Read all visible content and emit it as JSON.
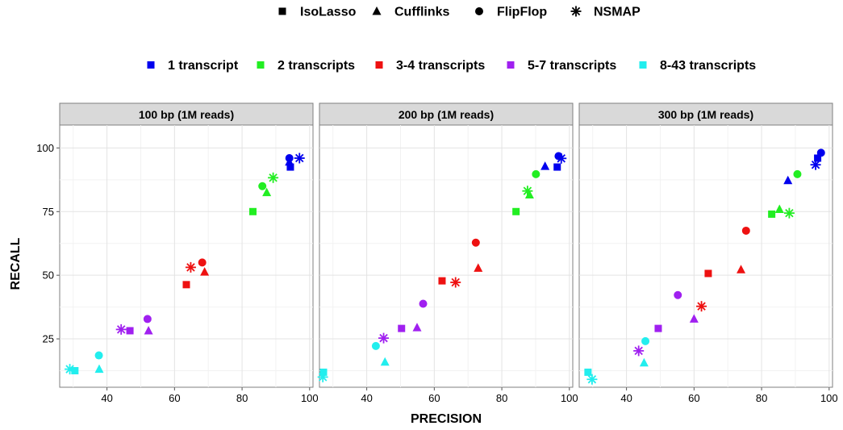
{
  "shape_legend": [
    {
      "label": "IsoLasso",
      "shape": "square"
    },
    {
      "label": "Cufflinks",
      "shape": "triangle"
    },
    {
      "label": "FlipFlop",
      "shape": "circle"
    },
    {
      "label": "NSMAP",
      "shape": "asterisk"
    }
  ],
  "color_legend": [
    {
      "label": "1 transcript",
      "color": "#0000ee"
    },
    {
      "label": "2 transcripts",
      "color": "#22ee22"
    },
    {
      "label": "3-4 transcripts",
      "color": "#ee1111"
    },
    {
      "label": "5-7 transcripts",
      "color": "#a020f0"
    },
    {
      "label": "8-43 transcripts",
      "color": "#22eeee"
    }
  ],
  "chart_data": {
    "type": "scatter",
    "xlabel": "PRECISION",
    "ylabel": "RECALL",
    "xlim": [
      26,
      101
    ],
    "ylim": [
      6,
      109
    ],
    "xticks": [
      40,
      60,
      80,
      100
    ],
    "yticks": [
      25,
      50,
      75,
      100
    ],
    "grid": true,
    "legend_position": "top",
    "panels": [
      {
        "title": "100 bp (1M reads)",
        "points": [
          {
            "method": "IsoLasso",
            "group": "1 transcript",
            "x": 94.3,
            "y": 92.5
          },
          {
            "method": "Cufflinks",
            "group": "1 transcript",
            "x": 94.0,
            "y": 94.5
          },
          {
            "method": "FlipFlop",
            "group": "1 transcript",
            "x": 94.0,
            "y": 96.0
          },
          {
            "method": "NSMAP",
            "group": "1 transcript",
            "x": 97.0,
            "y": 96.0
          },
          {
            "method": "IsoLasso",
            "group": "2 transcripts",
            "x": 83.2,
            "y": 75.0
          },
          {
            "method": "Cufflinks",
            "group": "2 transcripts",
            "x": 87.3,
            "y": 82.5
          },
          {
            "method": "FlipFlop",
            "group": "2 transcripts",
            "x": 86.0,
            "y": 85.0
          },
          {
            "method": "NSMAP",
            "group": "2 transcripts",
            "x": 89.2,
            "y": 88.3
          },
          {
            "method": "IsoLasso",
            "group": "3-4 transcripts",
            "x": 63.5,
            "y": 46.3
          },
          {
            "method": "Cufflinks",
            "group": "3-4 transcripts",
            "x": 68.9,
            "y": 51.3
          },
          {
            "method": "FlipFlop",
            "group": "3-4 transcripts",
            "x": 68.2,
            "y": 55.0
          },
          {
            "method": "NSMAP",
            "group": "3-4 transcripts",
            "x": 64.8,
            "y": 53.1
          },
          {
            "method": "IsoLasso",
            "group": "5-7 transcripts",
            "x": 46.8,
            "y": 28.2
          },
          {
            "method": "Cufflinks",
            "group": "5-7 transcripts",
            "x": 52.3,
            "y": 28.2
          },
          {
            "method": "FlipFlop",
            "group": "5-7 transcripts",
            "x": 52.0,
            "y": 32.8
          },
          {
            "method": "NSMAP",
            "group": "5-7 transcripts",
            "x": 44.2,
            "y": 28.7
          },
          {
            "method": "IsoLasso",
            "group": "8-43 transcripts",
            "x": 30.5,
            "y": 12.5
          },
          {
            "method": "Cufflinks",
            "group": "8-43 transcripts",
            "x": 37.7,
            "y": 13.1
          },
          {
            "method": "FlipFlop",
            "group": "8-43 transcripts",
            "x": 37.6,
            "y": 18.5
          },
          {
            "method": "NSMAP",
            "group": "8-43 transcripts",
            "x": 29.0,
            "y": 13.1
          }
        ]
      },
      {
        "title": "200 bp (1M reads)",
        "points": [
          {
            "method": "IsoLasso",
            "group": "1 transcript",
            "x": 96.4,
            "y": 92.5
          },
          {
            "method": "Cufflinks",
            "group": "1 transcript",
            "x": 92.8,
            "y": 92.8
          },
          {
            "method": "FlipFlop",
            "group": "1 transcript",
            "x": 96.8,
            "y": 96.8
          },
          {
            "method": "NSMAP",
            "group": "1 transcript",
            "x": 97.6,
            "y": 95.9
          },
          {
            "method": "IsoLasso",
            "group": "2 transcripts",
            "x": 84.2,
            "y": 75.0
          },
          {
            "method": "Cufflinks",
            "group": "2 transcripts",
            "x": 88.2,
            "y": 81.6
          },
          {
            "method": "FlipFlop",
            "group": "2 transcripts",
            "x": 90.1,
            "y": 89.7
          },
          {
            "method": "NSMAP",
            "group": "2 transcripts",
            "x": 87.6,
            "y": 83.1
          },
          {
            "method": "IsoLasso",
            "group": "3-4 transcripts",
            "x": 62.3,
            "y": 47.8
          },
          {
            "method": "Cufflinks",
            "group": "3-4 transcripts",
            "x": 73.0,
            "y": 52.8
          },
          {
            "method": "FlipFlop",
            "group": "3-4 transcripts",
            "x": 72.3,
            "y": 62.8
          },
          {
            "method": "NSMAP",
            "group": "3-4 transcripts",
            "x": 66.3,
            "y": 47.2
          },
          {
            "method": "IsoLasso",
            "group": "5-7 transcripts",
            "x": 50.3,
            "y": 29.1
          },
          {
            "method": "Cufflinks",
            "group": "5-7 transcripts",
            "x": 54.9,
            "y": 29.4
          },
          {
            "method": "FlipFlop",
            "group": "5-7 transcripts",
            "x": 56.7,
            "y": 38.8
          },
          {
            "method": "NSMAP",
            "group": "5-7 transcripts",
            "x": 45.0,
            "y": 25.3
          },
          {
            "method": "IsoLasso",
            "group": "8-43 transcripts",
            "x": 27.2,
            "y": 11.9
          },
          {
            "method": "Cufflinks",
            "group": "8-43 transcripts",
            "x": 45.4,
            "y": 15.9
          },
          {
            "method": "FlipFlop",
            "group": "8-43 transcripts",
            "x": 42.7,
            "y": 22.2
          },
          {
            "method": "NSMAP",
            "group": "8-43 transcripts",
            "x": 27.0,
            "y": 10.0
          }
        ]
      },
      {
        "title": "300 bp (1M reads)",
        "points": [
          {
            "method": "IsoLasso",
            "group": "1 transcript",
            "x": 96.6,
            "y": 96.0
          },
          {
            "method": "Cufflinks",
            "group": "1 transcript",
            "x": 87.8,
            "y": 87.2
          },
          {
            "method": "FlipFlop",
            "group": "1 transcript",
            "x": 97.6,
            "y": 98.1
          },
          {
            "method": "NSMAP",
            "group": "1 transcript",
            "x": 96.0,
            "y": 93.4
          },
          {
            "method": "IsoLasso",
            "group": "2 transcripts",
            "x": 83.0,
            "y": 74.0
          },
          {
            "method": "Cufflinks",
            "group": "2 transcripts",
            "x": 85.3,
            "y": 75.9
          },
          {
            "method": "FlipFlop",
            "group": "2 transcripts",
            "x": 90.6,
            "y": 89.7
          },
          {
            "method": "NSMAP",
            "group": "2 transcripts",
            "x": 88.2,
            "y": 74.4
          },
          {
            "method": "IsoLasso",
            "group": "3-4 transcripts",
            "x": 64.2,
            "y": 50.7
          },
          {
            "method": "Cufflinks",
            "group": "3-4 transcripts",
            "x": 73.9,
            "y": 52.2
          },
          {
            "method": "FlipFlop",
            "group": "3-4 transcripts",
            "x": 75.4,
            "y": 67.5
          },
          {
            "method": "NSMAP",
            "group": "3-4 transcripts",
            "x": 62.2,
            "y": 37.8
          },
          {
            "method": "IsoLasso",
            "group": "5-7 transcripts",
            "x": 49.4,
            "y": 29.1
          },
          {
            "method": "Cufflinks",
            "group": "5-7 transcripts",
            "x": 60.0,
            "y": 32.8
          },
          {
            "method": "FlipFlop",
            "group": "5-7 transcripts",
            "x": 55.2,
            "y": 42.2
          },
          {
            "method": "NSMAP",
            "group": "5-7 transcripts",
            "x": 43.6,
            "y": 20.3
          },
          {
            "method": "IsoLasso",
            "group": "8-43 transcripts",
            "x": 28.6,
            "y": 11.9
          },
          {
            "method": "Cufflinks",
            "group": "8-43 transcripts",
            "x": 45.2,
            "y": 15.6
          },
          {
            "method": "FlipFlop",
            "group": "8-43 transcripts",
            "x": 45.6,
            "y": 24.1
          },
          {
            "method": "NSMAP",
            "group": "8-43 transcripts",
            "x": 29.8,
            "y": 9.1
          }
        ]
      }
    ]
  }
}
